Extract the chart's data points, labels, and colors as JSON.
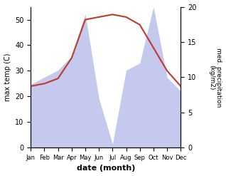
{
  "months": [
    "Jan",
    "Feb",
    "Mar",
    "Apr",
    "May",
    "Jun",
    "Jul",
    "Aug",
    "Sep",
    "Oct",
    "Nov",
    "Dec"
  ],
  "month_indices": [
    0,
    1,
    2,
    3,
    4,
    5,
    6,
    7,
    8,
    9,
    10,
    11
  ],
  "temperature": [
    24,
    25,
    27,
    35,
    50,
    51,
    52,
    51,
    48,
    39,
    30,
    24
  ],
  "precipitation_raw": [
    9,
    10,
    11,
    13,
    19,
    7,
    0.5,
    11,
    12,
    20,
    10,
    8
  ],
  "temp_color": "#c0392b",
  "precip_fill_color": "#b0b8e8",
  "precip_fill_alpha": 0.75,
  "xlabel": "date (month)",
  "ylabel_left": "max temp (C)",
  "ylabel_right": "med. precipitation\n(kg/m2)",
  "ylim_left": [
    0,
    55
  ],
  "ylim_right": [
    0,
    20
  ],
  "yticks_left": [
    0,
    10,
    20,
    30,
    40,
    50
  ],
  "yticks_right": [
    0,
    5,
    10,
    15,
    20
  ],
  "figsize": [
    3.18,
    2.47
  ],
  "dpi": 100
}
